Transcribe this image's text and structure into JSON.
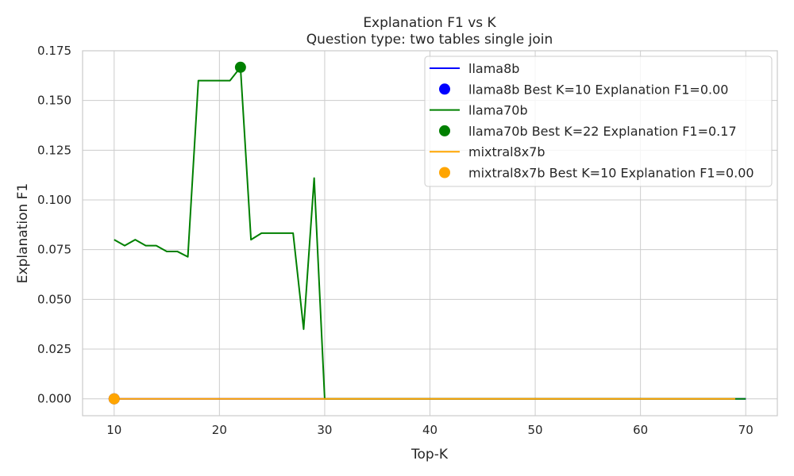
{
  "chart_data": {
    "type": "line",
    "title_line1": "Explanation F1 vs K",
    "title_line2": "Question type: two tables single join",
    "xlabel": "Top-K",
    "ylabel": "Explanation F1",
    "xlim": [
      7,
      73
    ],
    "ylim": [
      -0.0085,
      0.175
    ],
    "x_ticks": [
      10,
      20,
      30,
      40,
      50,
      60,
      70
    ],
    "y_ticks": [
      0.0,
      0.025,
      0.05,
      0.075,
      0.1,
      0.125,
      0.15,
      0.175
    ],
    "y_tick_labels": [
      "0.000",
      "0.025",
      "0.050",
      "0.075",
      "0.100",
      "0.125",
      "0.150",
      "0.175"
    ],
    "grid": true,
    "legend_position": "top-right",
    "series": [
      {
        "name": "llama8b",
        "color": "#0000ff",
        "x": [
          10,
          70
        ],
        "y": [
          0.0,
          0.0
        ]
      },
      {
        "name": "llama70b",
        "color": "#008000",
        "x": [
          10,
          11,
          12,
          13,
          14,
          15,
          16,
          17,
          18,
          19,
          20,
          21,
          22,
          23,
          24,
          25,
          26,
          27,
          28,
          29,
          30,
          31,
          70
        ],
        "y": [
          0.08,
          0.077,
          0.08,
          0.077,
          0.077,
          0.0741,
          0.0741,
          0.0714,
          0.16,
          0.16,
          0.16,
          0.16,
          0.1667,
          0.08,
          0.0833,
          0.0833,
          0.0833,
          0.0833,
          0.035,
          0.111,
          0.0,
          0.0,
          0.0
        ]
      },
      {
        "name": "mixtral8x7b",
        "color": "#ffa500",
        "x": [
          10,
          69
        ],
        "y": [
          0.0,
          0.0
        ]
      }
    ],
    "best_points": [
      {
        "label": "llama8b Best K=10 Explanation F1=0.00",
        "color": "#0000ff",
        "x": 10,
        "y": 0.0
      },
      {
        "label": "llama70b Best K=22 Explanation F1=0.17",
        "color": "#008000",
        "x": 22,
        "y": 0.1667
      },
      {
        "label": "mixtral8x7b Best K=10 Explanation F1=0.00",
        "color": "#ffa500",
        "x": 10,
        "y": 0.0
      }
    ],
    "legend": [
      {
        "kind": "line",
        "label": "llama8b",
        "color": "#0000ff"
      },
      {
        "kind": "marker",
        "label": "llama8b Best K=10 Explanation F1=0.00",
        "color": "#0000ff"
      },
      {
        "kind": "line",
        "label": "llama70b",
        "color": "#008000"
      },
      {
        "kind": "marker",
        "label": "llama70b Best K=22 Explanation F1=0.17",
        "color": "#008000"
      },
      {
        "kind": "line",
        "label": "mixtral8x7b",
        "color": "#ffa500"
      },
      {
        "kind": "marker",
        "label": "mixtral8x7b Best K=10 Explanation F1=0.00",
        "color": "#ffa500"
      }
    ]
  }
}
